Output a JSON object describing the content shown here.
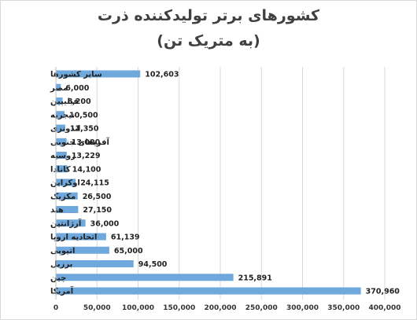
{
  "chart_data": {
    "type": "bar",
    "orientation": "horizontal",
    "title": "کشورهای برتر تولیدکننده ذرت",
    "subtitle": "(به متریک تن)",
    "categories": [
      "سایر کشورها",
      "مصر",
      "فیلیپین",
      "نیجریه",
      "اندونزی",
      "آفریقای جنوبی",
      "روسیه",
      "کانادا",
      "اوکراین",
      "مکزیک",
      "هند",
      "آرژانتین",
      "اتحادیه اروپا",
      "اتیوپی",
      "برزیل",
      "چین",
      "آمریکا"
    ],
    "values": [
      102603,
      6000,
      8200,
      10500,
      11350,
      13000,
      13229,
      14100,
      24115,
      26500,
      27150,
      36000,
      61139,
      65000,
      94500,
      215891,
      370960
    ],
    "data_labels": [
      "102,603",
      "6,000",
      "8,200",
      "10,500",
      "11,350",
      "13,000",
      "13,229",
      "14,100",
      "24,115",
      "26,500",
      "27,150",
      "36,000",
      "61,139",
      "65,000",
      "94,500",
      "215,891",
      "370,960"
    ],
    "x_ticks": [
      "0",
      "50,000",
      "100,000",
      "150,000",
      "200,000",
      "250,000",
      "300,000",
      "350,000",
      "400,000"
    ],
    "xlim": [
      0,
      400000
    ],
    "grid": true,
    "legend": "none",
    "bar_color": "#6fa8dc",
    "grid_color": "#d9d9d9"
  }
}
